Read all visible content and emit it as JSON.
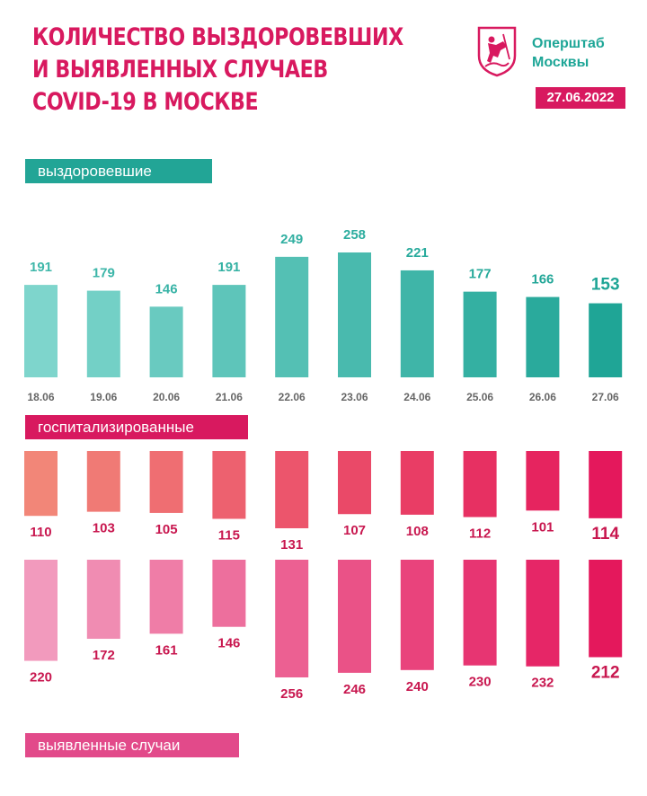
{
  "header": {
    "title_lines": [
      "КОЛИЧЕСТВО ВЫЗДОРОВЕВШИХ",
      "И ВЫЯВЛЕННЫХ СЛУЧАЕВ",
      "COVID-19 В МОСКВЕ"
    ],
    "brand_lines": [
      "Оперштаб",
      "Москвы"
    ],
    "date": "27.06.2022",
    "logo_icon": "moscow-coat-of-arms-icon"
  },
  "labels": {
    "recovered": "выздоровевшие",
    "hospitalized": "госпитализированные",
    "cases": "выявленные случаи"
  },
  "colors": {
    "teal": "#22a596",
    "pink": "#d8195f"
  },
  "chart_data": [
    {
      "type": "bar",
      "name": "выздоровевшие",
      "categories": [
        "18.06",
        "19.06",
        "20.06",
        "21.06",
        "22.06",
        "23.06",
        "24.06",
        "25.06",
        "26.06",
        "27.06"
      ],
      "values": [
        191,
        179,
        146,
        191,
        249,
        258,
        221,
        177,
        166,
        153
      ]
    },
    {
      "type": "bar",
      "name": "госпитализированные",
      "categories": [
        "18.06",
        "19.06",
        "20.06",
        "21.06",
        "22.06",
        "23.06",
        "24.06",
        "25.06",
        "26.06",
        "27.06"
      ],
      "values": [
        110,
        103,
        105,
        115,
        131,
        107,
        108,
        112,
        101,
        114
      ]
    },
    {
      "type": "bar",
      "name": "выявленные случаи",
      "categories": [
        "18.06",
        "19.06",
        "20.06",
        "21.06",
        "22.06",
        "23.06",
        "24.06",
        "25.06",
        "26.06",
        "27.06"
      ],
      "values": [
        220,
        172,
        161,
        146,
        256,
        246,
        240,
        230,
        232,
        212
      ]
    }
  ]
}
